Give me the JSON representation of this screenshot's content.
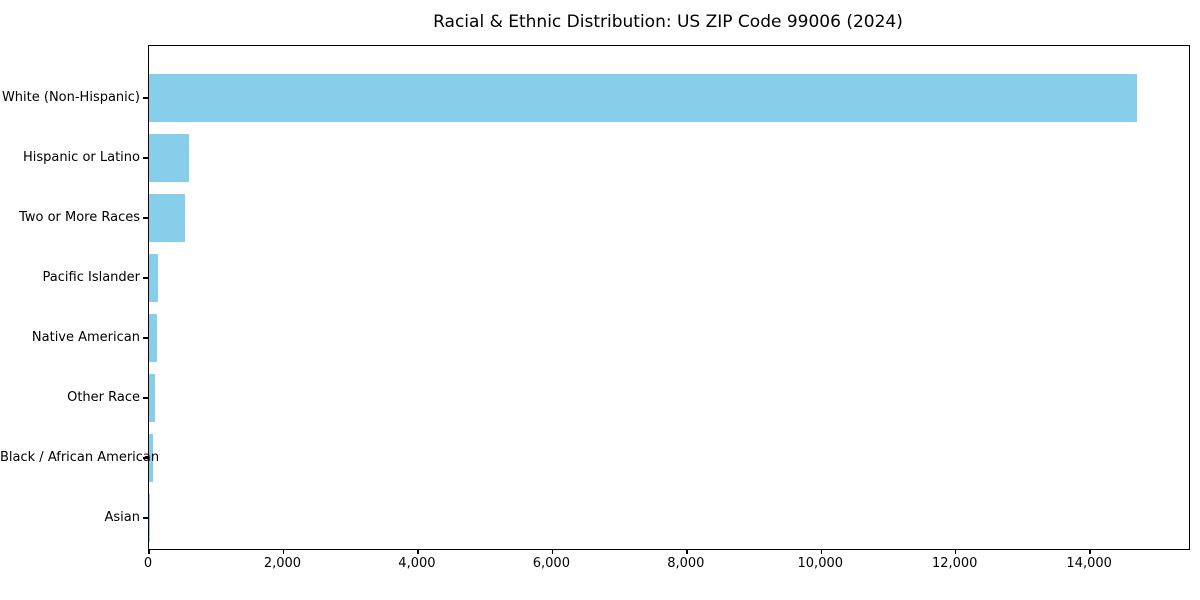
{
  "chart_data": {
    "type": "bar",
    "orientation": "horizontal",
    "title": "Racial & Ethnic Distribution: US ZIP Code 99006 (2024)",
    "categories": [
      "White (Non-Hispanic)",
      "Hispanic or Latino",
      "Two or More Races",
      "Pacific Islander",
      "Native American",
      "Other Race",
      "Black / African American",
      "Asian"
    ],
    "values": [
      14700,
      600,
      540,
      130,
      120,
      85,
      65,
      15
    ],
    "bar_color": "#87CEEB",
    "spine_color": "#000000",
    "text_color": "#000000",
    "xlim": [
      0,
      15470
    ],
    "x_ticks": [
      0,
      2000,
      4000,
      6000,
      8000,
      10000,
      12000,
      14000
    ],
    "x_tick_labels": [
      "0",
      "2,000",
      "4,000",
      "6,000",
      "8,000",
      "10,000",
      "12,000",
      "14,000"
    ],
    "xlabel": "",
    "ylabel": "",
    "grid": false,
    "legend": null
  }
}
